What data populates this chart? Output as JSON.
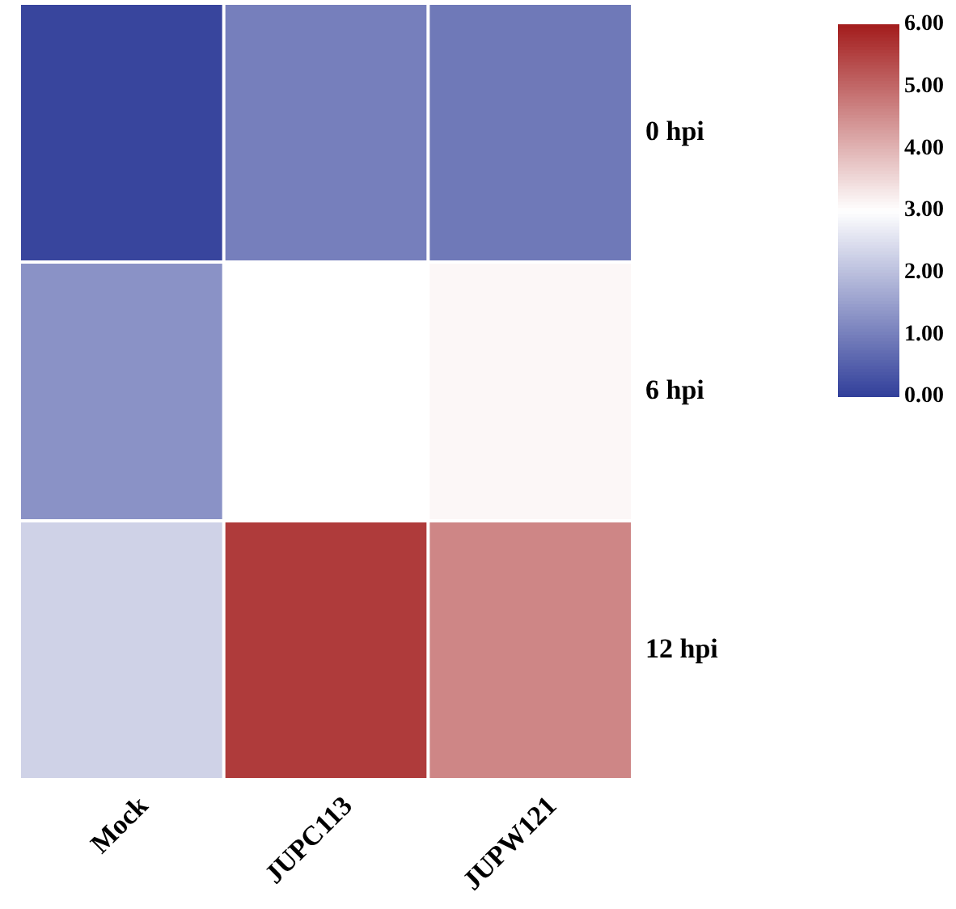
{
  "chart_data": {
    "type": "heatmap",
    "categories": [
      "Mock",
      "JUPC113",
      "JUPW121"
    ],
    "y_categories": [
      "0 hpi",
      "6 hpi",
      "12 hpi"
    ],
    "cells": [
      [
        0.1,
        1.0,
        0.9
      ],
      [
        1.3,
        3.0,
        3.1
      ],
      [
        2.3,
        5.6,
        4.6
      ]
    ],
    "clim": [
      0,
      6
    ],
    "cticks": [
      {
        "value": 0,
        "label": "0.00"
      },
      {
        "value": 1,
        "label": "1.00"
      },
      {
        "value": 2,
        "label": "2.00"
      },
      {
        "value": 3,
        "label": "3.00"
      },
      {
        "value": 4,
        "label": "4.00"
      },
      {
        "value": 5,
        "label": "5.00"
      },
      {
        "value": 6,
        "label": "6.00"
      }
    ]
  }
}
